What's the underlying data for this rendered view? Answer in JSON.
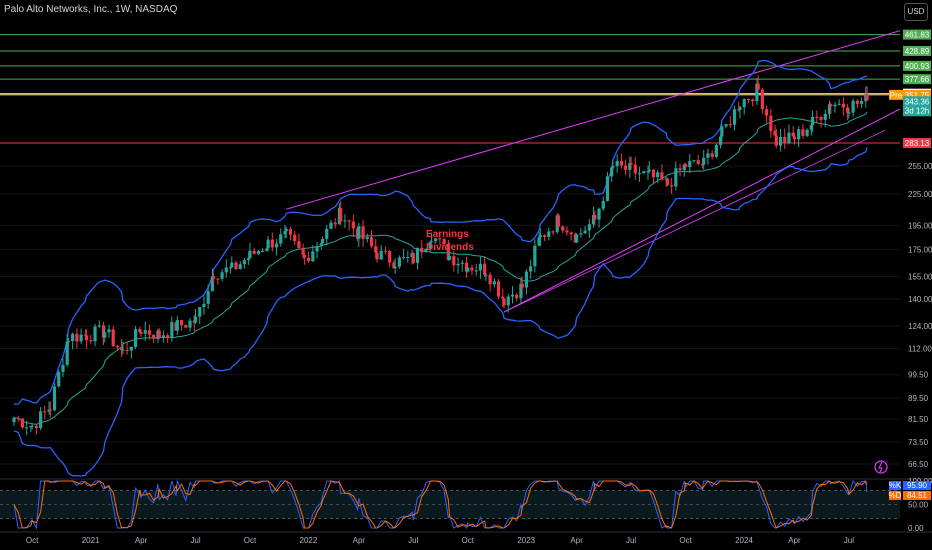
{
  "header": {
    "title": "Palo Alto Networks, Inc., 1W, NASDAQ",
    "currency": "USD"
  },
  "annotation": {
    "line1": "Earnings",
    "line2": "Dividends"
  },
  "colors": {
    "up": "#26a69a",
    "down": "#f23645",
    "upper_band": "#2962ff",
    "lower_band": "#2962ff",
    "basis": "#26a69a",
    "channel": "#e040fb",
    "resistance": "#4caf50",
    "support": "#f23645",
    "price_line": "#ffb74d"
  },
  "chart_data": {
    "type": "candlestick",
    "title": "Palo Alto Networks, Inc., 1W, NASDAQ",
    "y_scale": "log",
    "ylim": [
      60,
      470
    ],
    "x_ticks": [
      "Oct",
      "2021",
      "Apr",
      "Jul",
      "Oct",
      "2022",
      "Apr",
      "Jul",
      "Oct",
      "2023",
      "Apr",
      "Jul",
      "Oct",
      "2024",
      "Apr",
      "Jul"
    ],
    "y_ticks": [
      "255.00",
      "225.00",
      "195.00",
      "175.00",
      "155.00",
      "140.00",
      "124.00",
      "112.00",
      "99.50",
      "89.50",
      "81.50",
      "73.50",
      "66.50"
    ],
    "horizontal_levels": [
      {
        "value": 461.83,
        "label": "461.83",
        "color": "#4caf50"
      },
      {
        "value": 428.89,
        "label": "428.89",
        "color": "#4caf50"
      },
      {
        "value": 400.93,
        "label": "400.93",
        "color": "#4caf50"
      },
      {
        "value": 377.66,
        "label": "377.66",
        "color": "#4caf50"
      },
      {
        "value": 353.68,
        "label": "353.68",
        "color": "#ffffff"
      },
      {
        "value": 351.75,
        "label": "351.75",
        "color": "#ffb74d"
      },
      {
        "value": 283.13,
        "label": "283.13",
        "color": "#f23645"
      }
    ],
    "price_tags": {
      "pre_label": "Pre",
      "last": "343.36",
      "countdown": "3d 12h"
    },
    "close_series": [
      {
        "date": "2020-09",
        "close": 82
      },
      {
        "date": "2020-10",
        "close": 79
      },
      {
        "date": "2020-11",
        "close": 86
      },
      {
        "date": "2020-12",
        "close": 118
      },
      {
        "date": "2021-01",
        "close": 119
      },
      {
        "date": "2021-02",
        "close": 121
      },
      {
        "date": "2021-03",
        "close": 110
      },
      {
        "date": "2021-04",
        "close": 122
      },
      {
        "date": "2021-05",
        "close": 119
      },
      {
        "date": "2021-06",
        "close": 124
      },
      {
        "date": "2021-07",
        "close": 127
      },
      {
        "date": "2021-08",
        "close": 158
      },
      {
        "date": "2021-09",
        "close": 160
      },
      {
        "date": "2021-10",
        "close": 170
      },
      {
        "date": "2021-11",
        "close": 180
      },
      {
        "date": "2021-12",
        "close": 186
      },
      {
        "date": "2022-01",
        "close": 168
      },
      {
        "date": "2022-02",
        "close": 185
      },
      {
        "date": "2022-03",
        "close": 206
      },
      {
        "date": "2022-04",
        "close": 188
      },
      {
        "date": "2022-05",
        "close": 172
      },
      {
        "date": "2022-06",
        "close": 166
      },
      {
        "date": "2022-07",
        "close": 168
      },
      {
        "date": "2022-08",
        "close": 188
      },
      {
        "date": "2022-09",
        "close": 170
      },
      {
        "date": "2022-10",
        "close": 163
      },
      {
        "date": "2022-11",
        "close": 160
      },
      {
        "date": "2022-12",
        "close": 140
      },
      {
        "date": "2023-01",
        "close": 148
      },
      {
        "date": "2023-02",
        "close": 185
      },
      {
        "date": "2023-03",
        "close": 200
      },
      {
        "date": "2023-04",
        "close": 186
      },
      {
        "date": "2023-05",
        "close": 200
      },
      {
        "date": "2023-06",
        "close": 255
      },
      {
        "date": "2023-07",
        "close": 250
      },
      {
        "date": "2023-08",
        "close": 244
      },
      {
        "date": "2023-09",
        "close": 235
      },
      {
        "date": "2023-10",
        "close": 256
      },
      {
        "date": "2023-11",
        "close": 258
      },
      {
        "date": "2023-12",
        "close": 295
      },
      {
        "date": "2024-01",
        "close": 340
      },
      {
        "date": "2024-02",
        "close": 360
      },
      {
        "date": "2024-03",
        "close": 285
      },
      {
        "date": "2024-04",
        "close": 290
      },
      {
        "date": "2024-05",
        "close": 310
      },
      {
        "date": "2024-06",
        "close": 340
      },
      {
        "date": "2024-07",
        "close": 335
      },
      {
        "date": "2024-08",
        "close": 343.36
      }
    ],
    "bollinger": {
      "upper_color": "#2962ff",
      "basis_color": "#26a69a"
    },
    "oscillator": {
      "k_label": "%K",
      "d_label": "%D",
      "k_value": "95.90",
      "d_value": "84.51",
      "y_ticks": [
        "100.00",
        "50.00",
        "0.00"
      ]
    }
  }
}
